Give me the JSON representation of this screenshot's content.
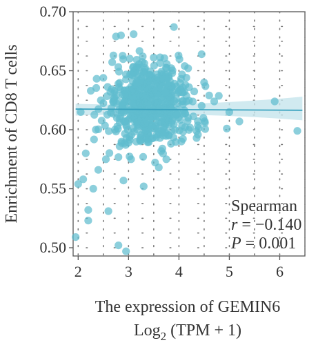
{
  "chart_data": {
    "type": "scatter",
    "xlabel": "The expression of GEMIN6",
    "xlabel_line2": {
      "base": "Log",
      "sub": "2",
      "rest": " (TPM + 1)"
    },
    "ylabel": "Enrichment of CD8 T cells",
    "xlim": [
      1.9,
      6.5
    ],
    "ylim": [
      0.493,
      0.7
    ],
    "xticks": [
      "2",
      "3",
      "4",
      "5",
      "6"
    ],
    "yticks": [
      "0.50",
      "0.55",
      "0.60",
      "0.65",
      "0.70"
    ],
    "grid": "dotted",
    "annotation": {
      "title": "Spearman",
      "r_label": "r",
      "r_value": "= −0.140",
      "p_label": "P",
      "p_value": "= 0.001"
    },
    "regression": {
      "x": [
        1.95,
        6.45
      ],
      "y": [
        0.6175,
        0.6165
      ],
      "ci_lower_start": 0.612,
      "ci_upper_start": 0.622,
      "ci_lower_mid": 0.6155,
      "ci_upper_mid": 0.619,
      "ci_lower_end": 0.608,
      "ci_upper_end": 0.628
    },
    "colors": {
      "points": "#5fbccf",
      "line": "#3aa3bf",
      "band": "#c6e5ec"
    },
    "points_outliers": [
      [
        1.95,
        0.509
      ],
      [
        2.0,
        0.554
      ],
      [
        2.1,
        0.558
      ],
      [
        2.15,
        0.58
      ],
      [
        2.2,
        0.523
      ],
      [
        2.2,
        0.532
      ],
      [
        2.3,
        0.55
      ],
      [
        2.4,
        0.566
      ],
      [
        2.6,
        0.531
      ],
      [
        2.8,
        0.502
      ],
      [
        2.95,
        0.497
      ],
      [
        3.3,
        0.552
      ],
      [
        3.9,
        0.687
      ],
      [
        2.75,
        0.679
      ],
      [
        2.85,
        0.68
      ],
      [
        3.1,
        0.681
      ],
      [
        4.45,
        0.664
      ],
      [
        4.05,
        0.59
      ],
      [
        3.6,
        0.568
      ],
      [
        2.05,
        0.615
      ],
      [
        6.35,
        0.599
      ],
      [
        5.9,
        0.624
      ],
      [
        5.2,
        0.607
      ],
      [
        5.0,
        0.615
      ],
      [
        4.95,
        0.601
      ],
      [
        4.7,
        0.624
      ],
      [
        4.35,
        0.593
      ],
      [
        2.55,
        0.575
      ],
      [
        2.7,
        0.663
      ],
      [
        2.25,
        0.633
      ],
      [
        2.5,
        0.644
      ],
      [
        2.9,
        0.557
      ],
      [
        3.05,
        0.575
      ],
      [
        3.0,
        0.589
      ],
      [
        4.5,
        0.64
      ],
      [
        4.2,
        0.636
      ],
      [
        2.35,
        0.6
      ],
      [
        2.45,
        0.625
      ],
      [
        3.75,
        0.575
      ],
      [
        4.6,
        0.629
      ]
    ],
    "cluster": {
      "n": 560,
      "center_x": 3.45,
      "spread_x": 0.42,
      "center_y": 0.621,
      "spread_y": 0.018
    }
  }
}
